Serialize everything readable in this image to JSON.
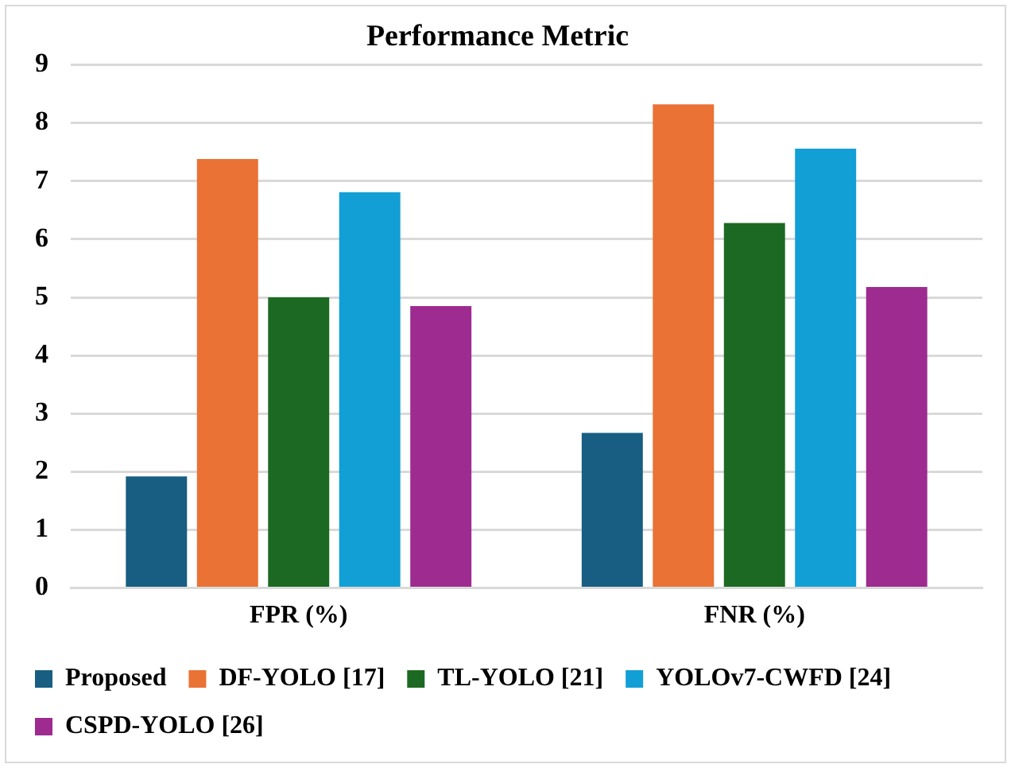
{
  "chart_data": {
    "type": "bar",
    "title": "Performance Metric",
    "categories": [
      "FPR (%)",
      "FNR (%)"
    ],
    "series": [
      {
        "name": "Proposed",
        "color": "#175e82",
        "values": [
          1.92,
          2.67
        ]
      },
      {
        "name": "DF-YOLO [17]",
        "color": "#e97234",
        "values": [
          7.38,
          8.32
        ]
      },
      {
        "name": "TL-YOLO [21]",
        "color": "#1c6923",
        "values": [
          5.0,
          6.28
        ]
      },
      {
        "name": "YOLOv7-CWFD [24]",
        "color": "#119fd6",
        "values": [
          6.81,
          7.56
        ]
      },
      {
        "name": "CSPD-YOLO [26]",
        "color": "#9e2b8f",
        "values": [
          4.85,
          5.18
        ]
      }
    ],
    "ylim": [
      0,
      9
    ],
    "yticks": [
      0,
      1,
      2,
      3,
      4,
      5,
      6,
      7,
      8,
      9
    ],
    "grid": "y",
    "legend": "bottom"
  }
}
